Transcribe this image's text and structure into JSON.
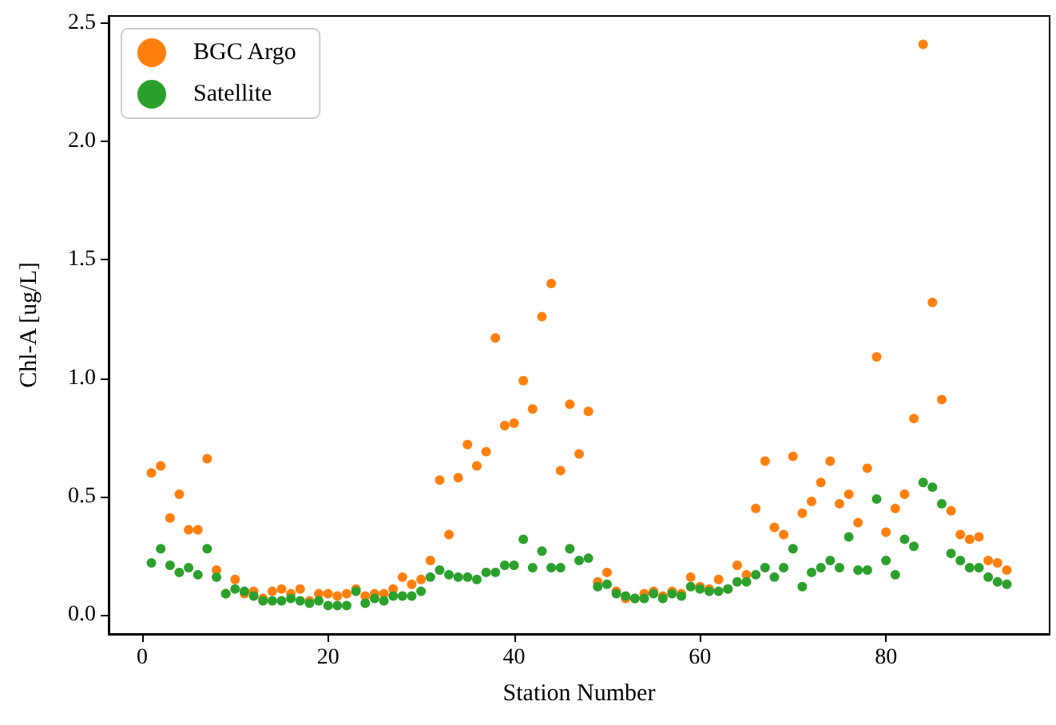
{
  "chart_data": {
    "type": "scatter",
    "xlabel": "Station Number",
    "ylabel": "Chl-A [ug/L]",
    "x": [
      1,
      2,
      3,
      4,
      5,
      6,
      7,
      8,
      9,
      10,
      11,
      12,
      13,
      14,
      15,
      16,
      17,
      18,
      19,
      20,
      21,
      22,
      23,
      24,
      25,
      26,
      27,
      28,
      29,
      30,
      31,
      32,
      33,
      34,
      35,
      36,
      37,
      38,
      39,
      40,
      41,
      42,
      43,
      44,
      45,
      46,
      47,
      48,
      49,
      50,
      51,
      52,
      53,
      54,
      55,
      56,
      57,
      58,
      59,
      60,
      61,
      62,
      63,
      64,
      65,
      66,
      67,
      68,
      69,
      70,
      71,
      72,
      73,
      74,
      75,
      76,
      77,
      78,
      79,
      80,
      81,
      82,
      83,
      84,
      85,
      86,
      87,
      88,
      89,
      90,
      91,
      92,
      93
    ],
    "series": [
      {
        "name": "BGC Argo",
        "color": "#ff7f0e",
        "values": [
          0.6,
          0.63,
          0.41,
          0.51,
          0.36,
          0.36,
          0.66,
          0.19,
          0.09,
          0.15,
          0.09,
          0.1,
          0.07,
          0.1,
          0.11,
          0.09,
          0.11,
          0.06,
          0.09,
          0.09,
          0.08,
          0.09,
          0.11,
          0.08,
          0.09,
          0.09,
          0.11,
          0.16,
          0.13,
          0.15,
          0.23,
          0.57,
          0.34,
          0.58,
          0.72,
          0.63,
          0.69,
          1.17,
          0.8,
          0.81,
          0.99,
          0.87,
          1.26,
          1.4,
          0.61,
          0.89,
          0.68,
          0.86,
          0.14,
          0.18,
          0.1,
          0.07,
          0.07,
          0.09,
          0.1,
          0.08,
          0.1,
          0.09,
          0.16,
          0.12,
          0.11,
          0.15,
          0.11,
          0.21,
          0.17,
          0.45,
          0.65,
          0.37,
          0.34,
          0.67,
          0.43,
          0.48,
          0.56,
          0.65,
          0.47,
          0.51,
          0.39,
          0.62,
          1.09,
          0.35,
          0.45,
          0.51,
          0.83,
          2.41,
          1.32,
          0.91,
          0.44,
          0.34,
          0.32,
          0.33,
          0.23,
          0.22,
          0.19
        ]
      },
      {
        "name": "Satellite",
        "color": "#2ca02c",
        "values": [
          0.22,
          0.28,
          0.21,
          0.18,
          0.2,
          0.17,
          0.28,
          0.16,
          0.09,
          0.11,
          0.1,
          0.08,
          0.06,
          0.06,
          0.06,
          0.07,
          0.06,
          0.05,
          0.06,
          0.04,
          0.04,
          0.04,
          0.1,
          0.05,
          0.07,
          0.06,
          0.08,
          0.08,
          0.08,
          0.1,
          0.16,
          0.19,
          0.17,
          0.16,
          0.16,
          0.15,
          0.18,
          0.18,
          0.21,
          0.21,
          0.32,
          0.2,
          0.27,
          0.2,
          0.2,
          0.28,
          0.23,
          0.24,
          0.12,
          0.13,
          0.09,
          0.08,
          0.07,
          0.07,
          0.09,
          0.07,
          0.09,
          0.08,
          0.12,
          0.11,
          0.1,
          0.1,
          0.11,
          0.14,
          0.14,
          0.17,
          0.2,
          0.16,
          0.2,
          0.28,
          0.12,
          0.18,
          0.2,
          0.23,
          0.2,
          0.33,
          0.19,
          0.19,
          0.49,
          0.23,
          0.17,
          0.32,
          0.29,
          0.56,
          0.54,
          0.47,
          0.26,
          0.23,
          0.2,
          0.2,
          0.16,
          0.14,
          0.13
        ]
      }
    ],
    "xlim": [
      -3.6,
      97.6
    ],
    "xticks": [
      0,
      20,
      40,
      60,
      80
    ],
    "ylim": [
      -0.08,
      2.53
    ],
    "yticks": [
      {
        "value": 0,
        "label": "0.0"
      },
      {
        "value": 0.5,
        "label": "0.5"
      },
      {
        "value": 1,
        "label": "1.0"
      },
      {
        "value": 1.5,
        "label": "1.5"
      },
      {
        "value": 2,
        "label": "2.0"
      },
      {
        "value": 2.5,
        "label": "2.5"
      }
    ],
    "legend": "top left",
    "marker": "circle",
    "grid": false
  }
}
